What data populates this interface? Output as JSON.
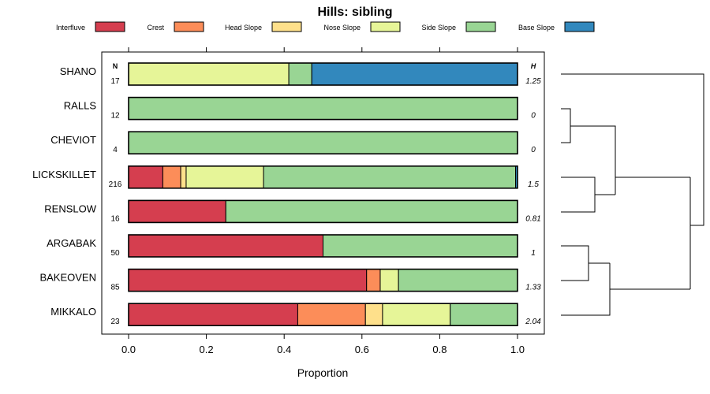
{
  "chart_data": {
    "type": "bar",
    "orientation": "horizontal",
    "stacked": true,
    "title": "Hills: sibling",
    "xlabel": "Proportion",
    "ylabel": "",
    "xlim": [
      0,
      1
    ],
    "x_ticks": [
      "0.0",
      "0.2",
      "0.4",
      "0.6",
      "0.8",
      "1.0"
    ],
    "x_tick_values": [
      0,
      0.2,
      0.4,
      0.6,
      0.8,
      1.0
    ],
    "n_header": "N",
    "h_header": "H",
    "legend_position": "top",
    "legend": [
      {
        "name": "Interfluve",
        "color": "#d53e4f"
      },
      {
        "name": "Crest",
        "color": "#fc8d59"
      },
      {
        "name": "Head Slope",
        "color": "#fee08b"
      },
      {
        "name": "Nose Slope",
        "color": "#e6f598"
      },
      {
        "name": "Side Slope",
        "color": "#99d594"
      },
      {
        "name": "Base Slope",
        "color": "#3288bd"
      }
    ],
    "categories": [
      "SHANO",
      "RALLS",
      "CHEVIOT",
      "LICKSKILLET",
      "RENSLOW",
      "ARGABAK",
      "BAKEOVEN",
      "MIKKALO"
    ],
    "n": [
      "17",
      "12",
      "4",
      "216",
      "16",
      "50",
      "85",
      "23"
    ],
    "h": [
      "1.25",
      "0",
      "0",
      "1.5",
      "0.81",
      "1",
      "1.33",
      "2.04"
    ],
    "series": [
      {
        "name": "Interfluve",
        "values": [
          0,
          0,
          0,
          0.088,
          0.25,
          0.5,
          0.612,
          0.435
        ]
      },
      {
        "name": "Crest",
        "values": [
          0,
          0,
          0,
          0.046,
          0,
          0,
          0.035,
          0.174
        ]
      },
      {
        "name": "Head Slope",
        "values": [
          0,
          0,
          0,
          0.014,
          0,
          0,
          0,
          0.044
        ]
      },
      {
        "name": "Nose Slope",
        "values": [
          0.412,
          0,
          0,
          0.199,
          0,
          0,
          0.047,
          0.174
        ]
      },
      {
        "name": "Side Slope",
        "values": [
          0.059,
          1.0,
          1.0,
          0.648,
          0.75,
          0.5,
          0.306,
          0.173
        ]
      },
      {
        "name": "Base Slope",
        "values": [
          0.529,
          0,
          0,
          0.005,
          0,
          0,
          0,
          0
        ]
      }
    ]
  }
}
